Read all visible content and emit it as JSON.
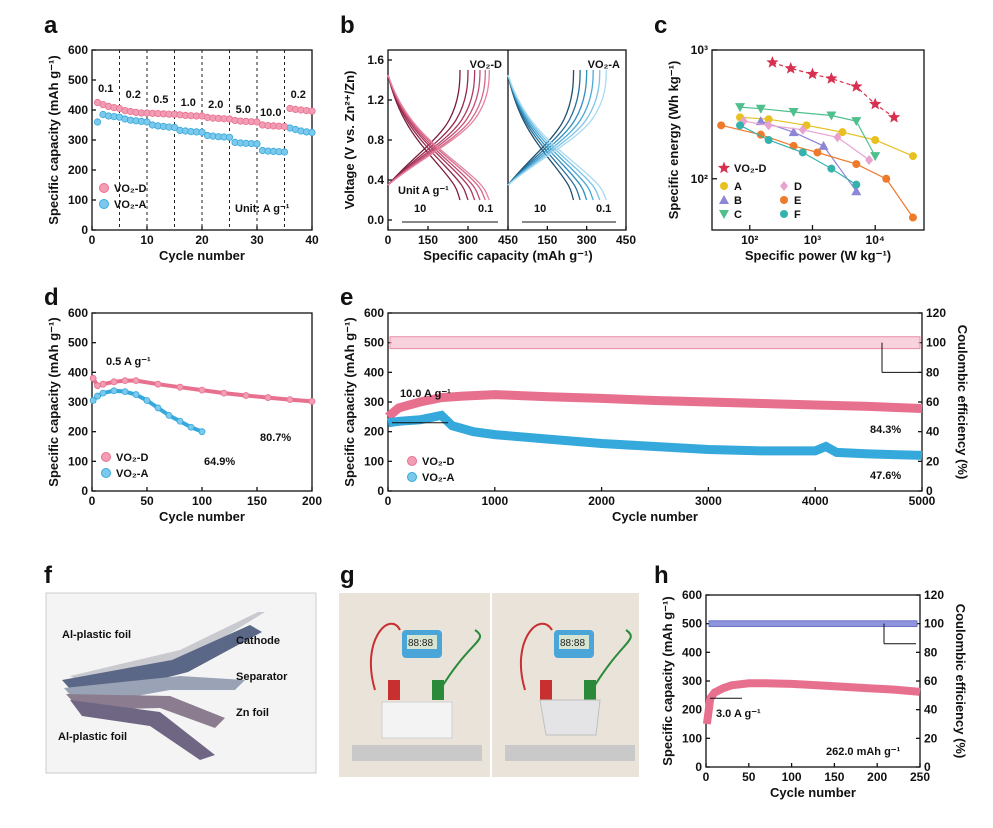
{
  "colors": {
    "pink": "#e8708f",
    "pinkFill": "#f29db4",
    "blue": "#35a9dc",
    "blueFill": "#7cc9ec",
    "red": "#d8304f",
    "axis": "#111111"
  },
  "panels": {
    "a": "a",
    "b": "b",
    "c": "c",
    "d": "d",
    "e": "e",
    "f": "f",
    "g": "g",
    "h": "h"
  },
  "chart_data": [
    {
      "id": "a",
      "type": "scatter",
      "xlabel": "Cycle number",
      "ylabel": "Specific capacity (mAh g⁻¹)",
      "xlim": [
        0,
        40
      ],
      "ylim": [
        0,
        600
      ],
      "xticks": [
        "0",
        "10",
        "20",
        "30",
        "40"
      ],
      "yticks": [
        "0",
        "100",
        "200",
        "300",
        "400",
        "500",
        "600"
      ],
      "rate_labels": [
        "0.1",
        "0.2",
        "0.5",
        "1.0",
        "2.0",
        "5.0",
        "10.0",
        "0.2"
      ],
      "unit_note": "Unit: A g⁻¹",
      "series": [
        {
          "name": "VO₂-D",
          "color": "pink",
          "x": [
            1,
            2,
            3,
            4,
            5,
            6,
            7,
            8,
            9,
            10,
            11,
            12,
            13,
            14,
            15,
            16,
            17,
            18,
            19,
            20,
            21,
            22,
            23,
            24,
            25,
            26,
            27,
            28,
            29,
            30,
            31,
            32,
            33,
            34,
            35,
            36,
            37,
            38,
            39,
            40
          ],
          "y": [
            425,
            418,
            412,
            408,
            405,
            398,
            395,
            392,
            390,
            390,
            389,
            388,
            387,
            386,
            386,
            384,
            382,
            381,
            380,
            380,
            375,
            373,
            372,
            371,
            370,
            365,
            363,
            362,
            361,
            360,
            350,
            348,
            347,
            346,
            345,
            405,
            402,
            400,
            398,
            396
          ]
        },
        {
          "name": "VO₂-A",
          "color": "blue",
          "x": [
            1,
            2,
            3,
            4,
            5,
            6,
            7,
            8,
            9,
            10,
            11,
            12,
            13,
            14,
            15,
            16,
            17,
            18,
            19,
            20,
            21,
            22,
            23,
            24,
            25,
            26,
            27,
            28,
            29,
            30,
            31,
            32,
            33,
            34,
            35,
            36,
            37,
            38,
            39,
            40
          ],
          "y": [
            360,
            385,
            380,
            378,
            376,
            370,
            366,
            364,
            362,
            360,
            350,
            347,
            345,
            343,
            342,
            332,
            330,
            328,
            327,
            326,
            315,
            313,
            311,
            310,
            309,
            292,
            290,
            289,
            288,
            287,
            265,
            263,
            262,
            261,
            260,
            340,
            335,
            330,
            327,
            325
          ]
        }
      ]
    },
    {
      "id": "b",
      "type": "line",
      "xlabel": "Specific capacity (mAh g⁻¹)",
      "ylabel": "Voltage (V vs. Zn²⁺/Zn)",
      "ylim": [
        -0.1,
        1.7
      ],
      "xticks_left": [
        "0",
        "150",
        "300",
        "450"
      ],
      "xticks_right": [
        "150",
        "300",
        "450"
      ],
      "yticks": [
        "0.0",
        "0.4",
        "0.8",
        "1.2",
        "1.6"
      ],
      "left_title": "VO₂-D",
      "right_title": "VO₂-A",
      "unit_text": "Unit A g⁻¹",
      "arrow_start": "10",
      "arrow_end": "0.1",
      "d_capacities": [
        270,
        300,
        325,
        345,
        365,
        380
      ],
      "a_capacities": [
        250,
        275,
        300,
        325,
        350,
        375
      ]
    },
    {
      "id": "c",
      "type": "scatter",
      "xlabel": "Specific power (W kg⁻¹)",
      "ylabel": "Specific energy (Wh kg⁻¹)",
      "xticks": [
        "10²",
        "10³",
        "10⁴"
      ],
      "yticks": [
        "10²",
        "10³"
      ],
      "series": [
        {
          "name": "VO₂-D",
          "color": "#d8304f",
          "marker": "star",
          "x": [
            230,
            450,
            1000,
            2000,
            5000,
            10000,
            20000
          ],
          "y": [
            800,
            720,
            650,
            600,
            520,
            380,
            300
          ]
        },
        {
          "name": "A",
          "color": "#e8c020",
          "marker": "pentagon",
          "x": [
            70,
            200,
            800,
            3000,
            10000,
            40000
          ],
          "y": [
            300,
            290,
            260,
            230,
            200,
            150
          ]
        },
        {
          "name": "B",
          "color": "#8d86d6",
          "marker": "tri",
          "x": [
            150,
            500,
            1500,
            5000
          ],
          "y": [
            280,
            230,
            180,
            80
          ]
        },
        {
          "name": "C",
          "color": "#4fc08d",
          "marker": "tri-down",
          "x": [
            70,
            150,
            500,
            2000,
            5000,
            10000
          ],
          "y": [
            360,
            350,
            330,
            310,
            280,
            150
          ]
        },
        {
          "name": "D",
          "color": "#e7a2cf",
          "marker": "diamond",
          "x": [
            80,
            200,
            700,
            2500,
            8000
          ],
          "y": [
            280,
            260,
            240,
            210,
            140
          ]
        },
        {
          "name": "E",
          "color": "#ee7a2c",
          "marker": "hexagon",
          "x": [
            35,
            150,
            500,
            1200,
            5000,
            15000,
            40000
          ],
          "y": [
            260,
            220,
            180,
            160,
            130,
            100,
            50
          ]
        },
        {
          "name": "F",
          "color": "#36b2ad",
          "marker": "pentagon",
          "x": [
            70,
            200,
            700,
            2000,
            5000
          ],
          "y": [
            260,
            200,
            160,
            120,
            90
          ]
        }
      ]
    },
    {
      "id": "d",
      "type": "scatter",
      "xlabel": "Cycle number",
      "ylabel": "Specific capacity (mAh g⁻¹)",
      "xlim": [
        0,
        200
      ],
      "ylim": [
        0,
        600
      ],
      "xticks": [
        "0",
        "50",
        "100",
        "150",
        "200"
      ],
      "yticks": [
        "0",
        "100",
        "200",
        "300",
        "400",
        "500",
        "600"
      ],
      "annotation": "0.5 A g⁻¹",
      "retention_d": "80.7%",
      "retention_a": "64.9%",
      "series": [
        {
          "name": "VO₂-D",
          "color": "pink",
          "x": [
            1,
            5,
            10,
            20,
            30,
            40,
            60,
            80,
            100,
            120,
            140,
            160,
            180,
            200
          ],
          "y": [
            380,
            355,
            360,
            368,
            372,
            372,
            360,
            350,
            340,
            330,
            322,
            315,
            308,
            302
          ]
        },
        {
          "name": "VO₂-A",
          "color": "blue",
          "x": [
            1,
            5,
            10,
            20,
            30,
            40,
            50,
            60,
            70,
            80,
            90,
            100
          ],
          "y": [
            305,
            320,
            330,
            338,
            335,
            325,
            305,
            280,
            255,
            235,
            215,
            200
          ]
        }
      ]
    },
    {
      "id": "e",
      "type": "scatter",
      "xlabel": "Cycle number",
      "ylabel": "Specific capacity (mAh g⁻¹)",
      "y2label": "Coulombic efficiency (%)",
      "xlim": [
        0,
        5000
      ],
      "ylim": [
        0,
        600
      ],
      "y2lim": [
        0,
        120
      ],
      "xticks": [
        "0",
        "1000",
        "2000",
        "3000",
        "4000",
        "5000"
      ],
      "yticks": [
        "0",
        "100",
        "200",
        "300",
        "400",
        "500",
        "600"
      ],
      "y2ticks": [
        "0",
        "20",
        "40",
        "60",
        "80",
        "100",
        "120"
      ],
      "annotation": "10.0 A g⁻¹",
      "retention_d": "84.3%",
      "retention_a": "47.6%",
      "series": [
        {
          "name": "VO₂-D",
          "color": "pink",
          "x": [
            1,
            100,
            300,
            500,
            700,
            1000,
            1500,
            2000,
            2500,
            3000,
            3500,
            4000,
            4500,
            5000
          ],
          "y": [
            250,
            280,
            300,
            315,
            320,
            325,
            318,
            312,
            305,
            300,
            295,
            290,
            285,
            278
          ]
        },
        {
          "name": "VO₂-A",
          "color": "blue",
          "x": [
            1,
            100,
            300,
            500,
            600,
            800,
            1000,
            1500,
            2000,
            2500,
            3000,
            3500,
            4000,
            4100,
            4200,
            4500,
            5000
          ],
          "y": [
            230,
            235,
            240,
            255,
            220,
            200,
            190,
            175,
            160,
            150,
            140,
            135,
            135,
            150,
            130,
            125,
            120
          ]
        },
        {
          "name": "CE",
          "color": "pink",
          "x": [
            0,
            5000
          ],
          "y": [
            100,
            100
          ]
        }
      ]
    },
    {
      "id": "h",
      "type": "scatter",
      "xlabel": "Cycle number",
      "ylabel": "Specific capacity (mAh g⁻¹)",
      "y2label": "Coulombic efficiency (%)",
      "xlim": [
        0,
        250
      ],
      "ylim": [
        0,
        600
      ],
      "y2lim": [
        0,
        120
      ],
      "xticks": [
        "0",
        "50",
        "100",
        "150",
        "200",
        "250"
      ],
      "yticks": [
        "0",
        "100",
        "200",
        "300",
        "400",
        "500",
        "600"
      ],
      "y2ticks": [
        "0",
        "20",
        "40",
        "60",
        "80",
        "100",
        "120"
      ],
      "annotation": "3.0 A g⁻¹",
      "end_label": "262.0 mAh g⁻¹",
      "series": [
        {
          "name": "capacity",
          "color": "pink",
          "x": [
            1,
            5,
            10,
            20,
            30,
            50,
            70,
            100,
            130,
            160,
            190,
            220,
            250
          ],
          "y": [
            150,
            240,
            260,
            275,
            285,
            292,
            292,
            290,
            285,
            280,
            275,
            270,
            262
          ]
        },
        {
          "name": "CE",
          "color": "blue",
          "x": [
            0,
            250
          ],
          "y": [
            100,
            100
          ]
        }
      ]
    }
  ],
  "panel_f": {
    "labels": [
      "Al-plastic foil",
      "Cathode",
      "Separator",
      "Zn foil",
      "Al-plastic foil"
    ]
  },
  "panel_g": {
    "timer_text": "88:88"
  }
}
